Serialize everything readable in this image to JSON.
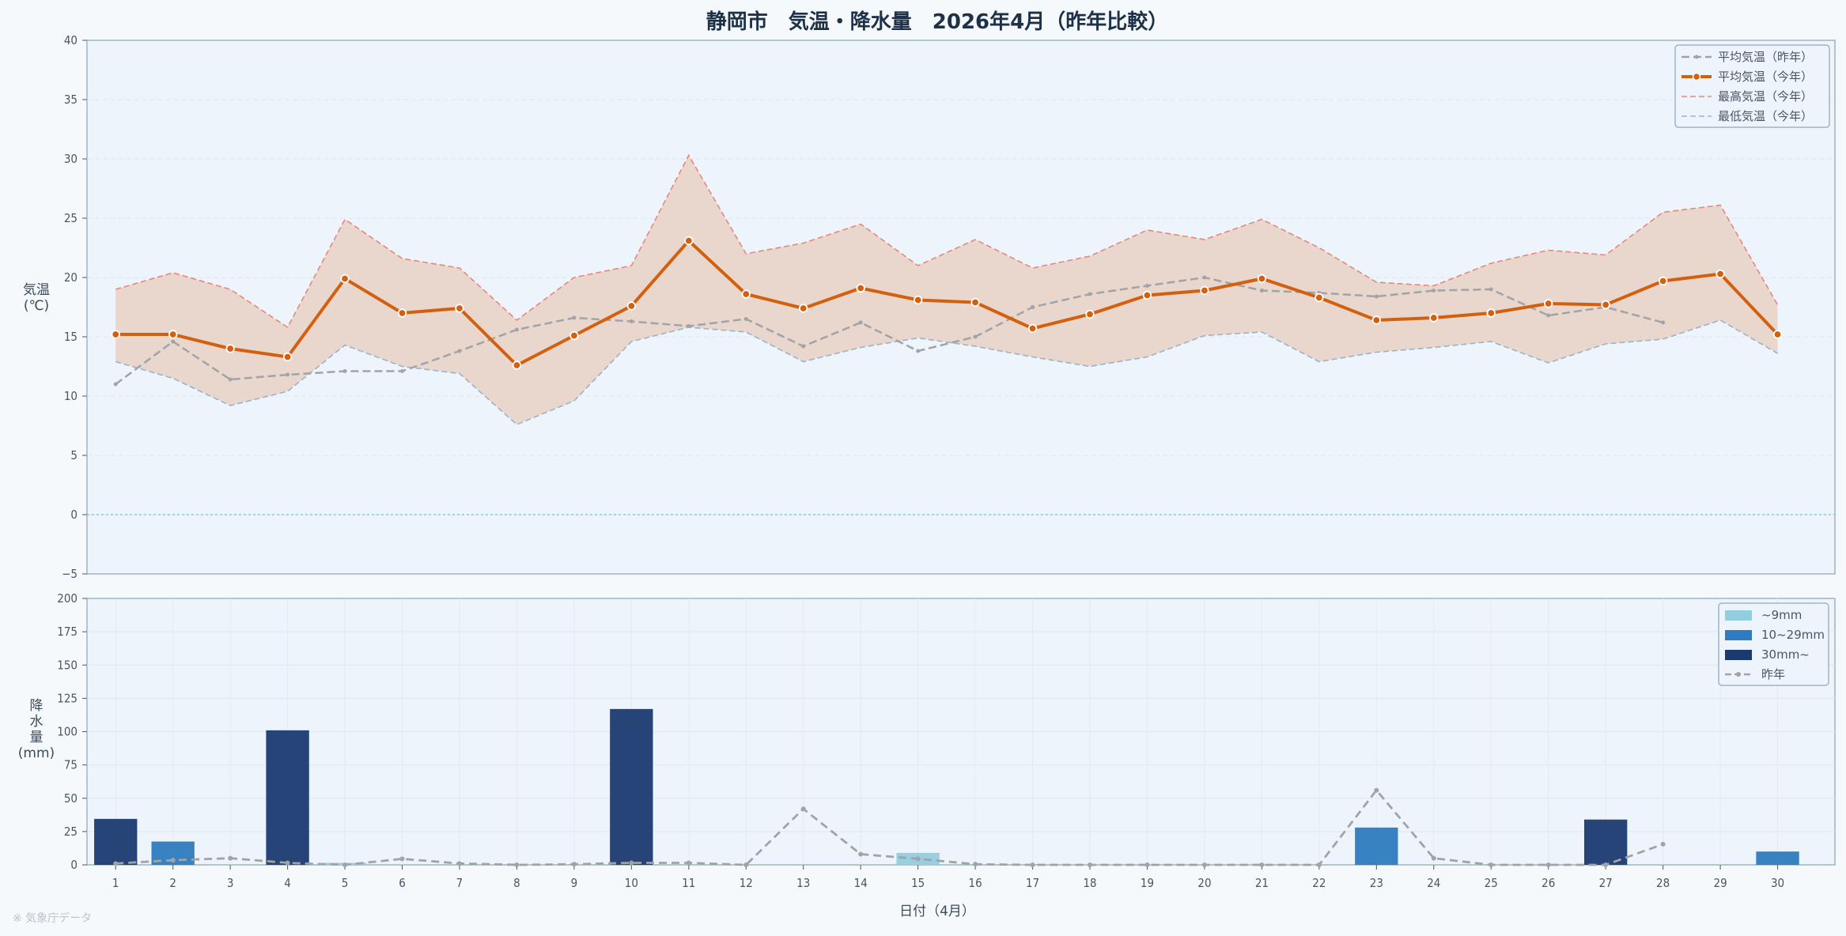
{
  "chart_data": [
    {
      "type": "line",
      "title": "静岡市　気温・降水量　2026年4月（昨年比較）",
      "ylabel": "気温\n(℃)",
      "ylim": [
        -5,
        40
      ],
      "yticks": [
        -5,
        0,
        5,
        10,
        15,
        20,
        25,
        30,
        35,
        40
      ],
      "grid": true,
      "legend_position": "top-right",
      "x": [
        1,
        2,
        3,
        4,
        5,
        6,
        7,
        8,
        9,
        10,
        11,
        12,
        13,
        14,
        15,
        16,
        17,
        18,
        19,
        20,
        21,
        22,
        23,
        24,
        25,
        26,
        27,
        28,
        29,
        30
      ],
      "series": [
        {
          "name": "平均気温（昨年）",
          "style": "dashed-dot-markers",
          "color": "#a0a4a8",
          "values": [
            11.0,
            14.6,
            11.4,
            11.8,
            12.1,
            12.1,
            13.8,
            15.6,
            16.6,
            16.3,
            15.9,
            16.5,
            14.2,
            16.2,
            13.8,
            15.0,
            17.5,
            18.6,
            19.3,
            20.0,
            18.9,
            18.7,
            18.4,
            18.9,
            19.0,
            16.8,
            17.5,
            16.2,
            null,
            null
          ]
        },
        {
          "name": "平均気温（今年）",
          "style": "solid-markers",
          "color": "#d2600f",
          "values": [
            15.2,
            15.2,
            14.0,
            13.3,
            19.9,
            17.0,
            17.4,
            12.6,
            15.1,
            17.6,
            23.1,
            18.6,
            17.4,
            19.1,
            18.1,
            17.9,
            15.7,
            16.9,
            18.5,
            18.9,
            19.9,
            18.3,
            16.4,
            16.6,
            17.0,
            17.8,
            17.7,
            19.7,
            20.3,
            15.2
          ]
        },
        {
          "name": "最高気温（今年）",
          "style": "dashed",
          "color": "#e8877a",
          "values": [
            19.0,
            20.4,
            19.0,
            15.8,
            24.9,
            21.6,
            20.8,
            16.4,
            20.0,
            21.0,
            30.3,
            22.0,
            22.9,
            24.5,
            21.0,
            23.2,
            20.8,
            21.8,
            24.0,
            23.2,
            24.9,
            22.5,
            19.6,
            19.3,
            21.2,
            22.3,
            21.9,
            25.5,
            26.1,
            17.7
          ]
        },
        {
          "name": "最低気温（今年）",
          "style": "dashed",
          "color": "#98b3cb",
          "values": [
            12.9,
            11.5,
            9.2,
            10.4,
            14.3,
            12.5,
            11.9,
            7.6,
            9.6,
            14.6,
            15.8,
            15.4,
            12.9,
            14.1,
            14.9,
            14.2,
            13.3,
            12.5,
            13.3,
            15.1,
            15.4,
            12.9,
            13.7,
            14.1,
            14.6,
            12.8,
            14.4,
            14.8,
            16.4,
            13.6
          ]
        }
      ]
    },
    {
      "type": "bar",
      "ylabel": "降\n水\n量\n(mm)",
      "xlabel": "日付（4月）",
      "ylim": [
        0,
        200
      ],
      "yticks": [
        0,
        25,
        50,
        75,
        100,
        125,
        150,
        175,
        200
      ],
      "grid": true,
      "legend_position": "top-right",
      "categories": [
        1,
        2,
        3,
        4,
        5,
        6,
        7,
        8,
        9,
        10,
        11,
        12,
        13,
        14,
        15,
        16,
        17,
        18,
        19,
        20,
        21,
        22,
        23,
        24,
        25,
        26,
        27,
        28,
        29,
        30
      ],
      "values": [
        34.5,
        17.5,
        0,
        101.0,
        1.5,
        0,
        0,
        0,
        0,
        117.0,
        0,
        0,
        0,
        0,
        9.0,
        0,
        0,
        0,
        0,
        0,
        0.5,
        0,
        28.0,
        0,
        0,
        0,
        34.0,
        0,
        0,
        10.0
      ],
      "categories_legend": [
        {
          "name": "~9mm",
          "color": "#92cde0"
        },
        {
          "name": "10~29mm",
          "color": "#2e7bbf"
        },
        {
          "name": "30mm~",
          "color": "#1a3a70"
        }
      ],
      "series": [
        {
          "name": "昨年",
          "style": "dashed-markers",
          "color": "#a0a4a8",
          "values": [
            1.0,
            3.5,
            5.0,
            1.5,
            0,
            4.5,
            1.0,
            0,
            0.5,
            1.5,
            1.5,
            0,
            42.0,
            8.0,
            4.5,
            0.5,
            0,
            0,
            0,
            0,
            0,
            0,
            56.0,
            5.0,
            0,
            0,
            0,
            15.5,
            null,
            null
          ]
        }
      ]
    }
  ],
  "source_note": "※ 気象庁データ",
  "colors": {
    "band_fill": "#e8d3c6",
    "panel_bg": "#eef4fb",
    "zero_line": "#8fc6d6"
  }
}
